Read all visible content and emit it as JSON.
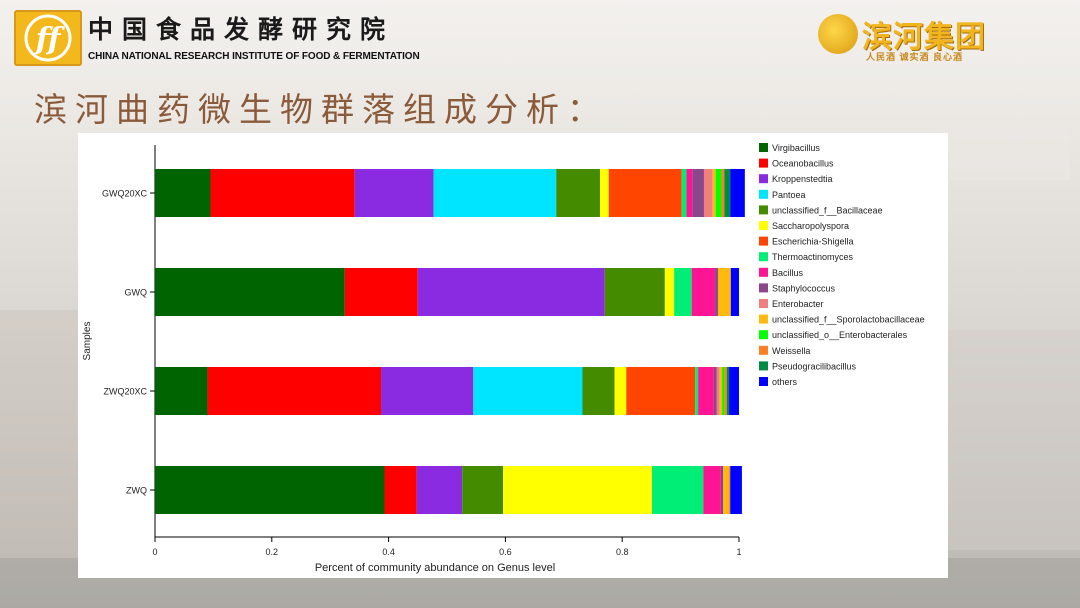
{
  "header": {
    "institute_cn": "中国食品发酵研究院",
    "institute_en": "CHINA NATIONAL RESEARCH INSTITUTE OF FOOD & FERMENTATION",
    "logo_letters": "ff",
    "brand_name": "滨河集团",
    "brand_slogan": "人民酒 诚实酒 良心酒"
  },
  "slide_title": "滨河曲药微生物群落组成分析：",
  "chart_data": {
    "type": "bar",
    "orientation": "horizontal",
    "stacked": true,
    "title": "",
    "xlabel": "Percent of community abundance on Genus level",
    "ylabel": "Samples",
    "xlim": [
      0,
      1
    ],
    "xticks": [
      "0",
      "0.2",
      "0.4",
      "0.6",
      "0.8",
      "1"
    ],
    "grid": false,
    "legend_position": "right",
    "categories": [
      "GWQ20XC",
      "GWQ",
      "ZWQ20XC",
      "ZWQ"
    ],
    "series": [
      {
        "name": "Virgibacillus",
        "color": "#006400",
        "values": [
          0.095,
          0.325,
          0.09,
          0.393
        ]
      },
      {
        "name": "Oceanobacillus",
        "color": "#ff0000",
        "values": [
          0.247,
          0.125,
          0.297,
          0.055
        ]
      },
      {
        "name": "Kroppenstedtia",
        "color": "#8a2be2",
        "values": [
          0.135,
          0.32,
          0.158,
          0.078
        ]
      },
      {
        "name": "Pantoea",
        "color": "#00e5ff",
        "values": [
          0.21,
          0.0,
          0.187,
          0.0
        ]
      },
      {
        "name": "unclassified_f__Bacillaceae",
        "color": "#458b00",
        "values": [
          0.075,
          0.103,
          0.055,
          0.07
        ]
      },
      {
        "name": "Saccharopolyspora",
        "color": "#ffff00",
        "values": [
          0.015,
          0.016,
          0.02,
          0.255
        ]
      },
      {
        "name": "Escherichia-Shigella",
        "color": "#ff4500",
        "values": [
          0.125,
          0.0,
          0.118,
          0.0
        ]
      },
      {
        "name": "Thermoactinomyces",
        "color": "#00ee76",
        "values": [
          0.008,
          0.03,
          0.005,
          0.088
        ]
      },
      {
        "name": "Bacillus",
        "color": "#ff1493",
        "values": [
          0.01,
          0.04,
          0.027,
          0.03
        ]
      },
      {
        "name": "Staphylococcus",
        "color": "#8b4789",
        "values": [
          0.02,
          0.005,
          0.005,
          0.004
        ]
      },
      {
        "name": "Enterobacter",
        "color": "#f08080",
        "values": [
          0.015,
          0.0,
          0.005,
          0.0
        ]
      },
      {
        "name": "unclassified_f__Sporolactobacillaceae",
        "color": "#ffb90f",
        "values": [
          0.005,
          0.022,
          0.004,
          0.01
        ]
      },
      {
        "name": "unclassified_o__Enterobacterales",
        "color": "#00ff00",
        "values": [
          0.01,
          0.0,
          0.004,
          0.0
        ]
      },
      {
        "name": "Weissella",
        "color": "#ff7f24",
        "values": [
          0.005,
          0.0,
          0.004,
          0.002
        ]
      },
      {
        "name": "Pseudogracilibacillus",
        "color": "#008b45",
        "values": [
          0.01,
          0.0,
          0.004,
          0.0
        ]
      },
      {
        "name": "others",
        "color": "#0000ff",
        "values": [
          0.025,
          0.014,
          0.017,
          0.02
        ]
      }
    ]
  }
}
